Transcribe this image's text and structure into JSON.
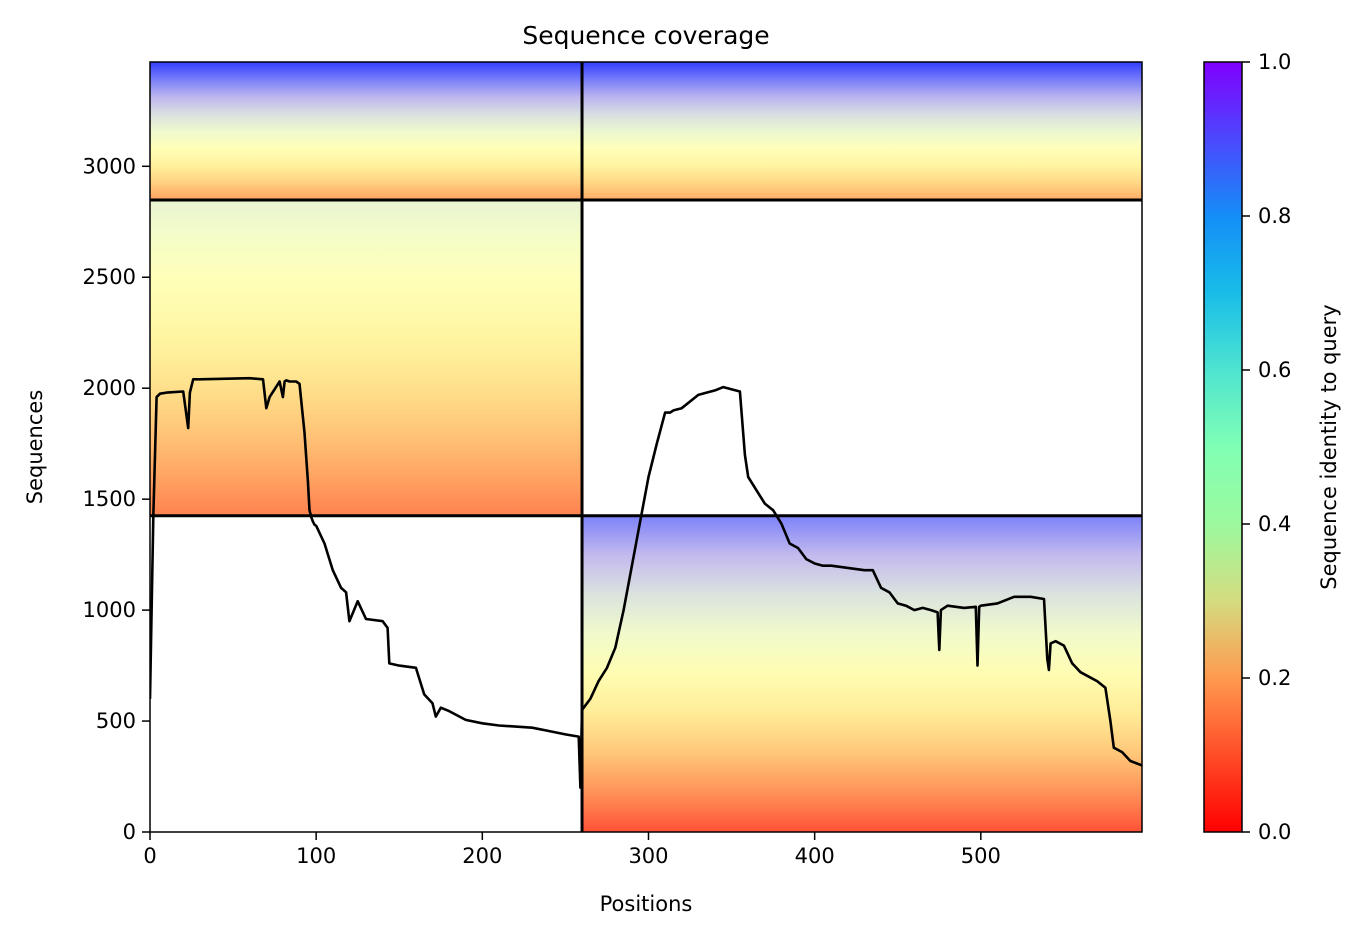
{
  "chart_data": {
    "type": "heatmap",
    "title": "Sequence coverage",
    "xlabel": "Positions",
    "ylabel": "Sequences",
    "colorbar_label": "Sequence identity to query",
    "colormap": "rainbow",
    "xlim": [
      0,
      597
    ],
    "ylim": [
      0,
      3470
    ],
    "x_ticks": [
      0,
      100,
      200,
      300,
      400,
      500
    ],
    "y_ticks": [
      0,
      500,
      1000,
      1500,
      2000,
      2500,
      3000
    ],
    "colorbar_ticks": [
      "0.0",
      "0.2",
      "0.4",
      "0.6",
      "0.8",
      "1.0"
    ],
    "grid": false,
    "domain_boundaries": {
      "x": [
        260
      ],
      "y": [
        1425,
        2848
      ]
    },
    "blocks": [
      {
        "x": [
          0,
          260
        ],
        "y": [
          2848,
          3470
        ],
        "identity_bottom": 0.2,
        "identity_top": 0.95
      },
      {
        "x": [
          260,
          597
        ],
        "y": [
          2848,
          3470
        ],
        "identity_bottom": 0.22,
        "identity_top": 0.95
      },
      {
        "x": [
          0,
          260
        ],
        "y": [
          1425,
          2848
        ],
        "identity_bottom": 0.15,
        "identity_top": 0.6
      },
      {
        "x": [
          260,
          597
        ],
        "y": [
          0,
          1425
        ],
        "identity_bottom": 0.08,
        "identity_top": 0.85
      }
    ],
    "coverage_line": {
      "x": [
        0,
        2,
        4,
        6,
        10,
        20,
        23,
        24,
        26,
        30,
        60,
        68,
        70,
        72,
        78,
        80,
        81,
        82,
        84,
        88,
        90,
        93,
        95,
        96,
        97,
        98,
        99,
        100,
        105,
        110,
        115,
        118,
        120,
        125,
        130,
        140,
        143,
        144,
        150,
        160,
        165,
        170,
        172,
        175,
        180,
        190,
        200,
        210,
        220,
        230,
        240,
        250,
        258,
        259,
        260,
        261,
        265,
        270,
        275,
        280,
        285,
        290,
        295,
        300,
        305,
        310,
        313,
        315,
        320,
        330,
        335,
        340,
        345,
        355,
        358,
        360,
        365,
        370,
        375,
        380,
        385,
        390,
        395,
        400,
        405,
        410,
        420,
        430,
        435,
        440,
        445,
        450,
        455,
        460,
        465,
        470,
        474,
        475,
        476,
        480,
        490,
        497,
        498,
        499,
        500,
        510,
        520,
        530,
        538,
        540,
        541,
        542,
        545,
        550,
        555,
        560,
        565,
        570,
        575,
        578,
        580,
        585,
        590,
        597
      ],
      "y": [
        600,
        1420,
        1960,
        1975,
        1980,
        1985,
        1820,
        1980,
        2040,
        2040,
        2045,
        2040,
        1910,
        1960,
        2030,
        1960,
        2030,
        2035,
        2030,
        2030,
        2020,
        1800,
        1580,
        1450,
        1420,
        1400,
        1385,
        1380,
        1300,
        1180,
        1100,
        1080,
        950,
        1040,
        960,
        950,
        920,
        760,
        750,
        740,
        620,
        580,
        520,
        560,
        545,
        505,
        490,
        480,
        475,
        470,
        455,
        440,
        430,
        200,
        550,
        560,
        600,
        680,
        740,
        830,
        1000,
        1200,
        1400,
        1600,
        1750,
        1890,
        1890,
        1900,
        1910,
        1970,
        1980,
        1990,
        2005,
        1985,
        1700,
        1600,
        1540,
        1480,
        1450,
        1390,
        1300,
        1280,
        1230,
        1210,
        1200,
        1200,
        1190,
        1180,
        1180,
        1100,
        1080,
        1030,
        1020,
        1000,
        1010,
        1000,
        990,
        820,
        1000,
        1020,
        1010,
        1015,
        750,
        1015,
        1020,
        1030,
        1060,
        1060,
        1050,
        780,
        730,
        850,
        860,
        840,
        760,
        720,
        700,
        680,
        650,
        500,
        380,
        360,
        320,
        300
      ]
    }
  }
}
